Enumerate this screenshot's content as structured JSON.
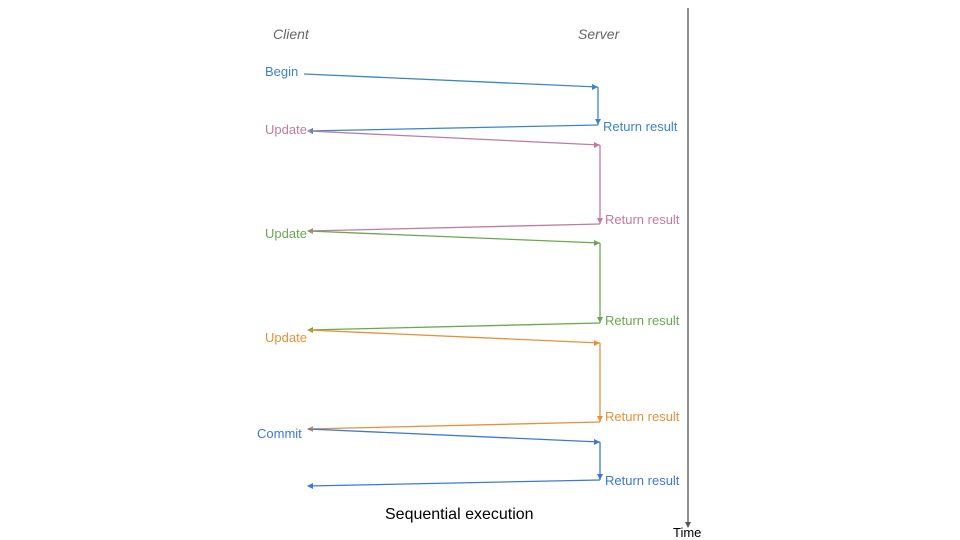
{
  "headers": {
    "client": "Client",
    "server": "Server"
  },
  "caption": "Sequential execution",
  "time_label": "Time",
  "colors": {
    "blue": "#3d85c6",
    "pink": "#c27ba0",
    "green": "#6aa84f",
    "orange": "#e69138",
    "commit": "#3c78d8",
    "axis": "#555555"
  },
  "steps": [
    {
      "request": "Begin",
      "response": "Return result",
      "color": "#3d85c6"
    },
    {
      "request": "Update",
      "response": "Return result",
      "color": "#c27ba0"
    },
    {
      "request": "Update",
      "response": "Return result",
      "color": "#6aa84f"
    },
    {
      "request": "Update",
      "response": "Return result",
      "color": "#e69138"
    },
    {
      "request": "Commit",
      "response": "Return result",
      "color": "#3c78d8"
    }
  ]
}
